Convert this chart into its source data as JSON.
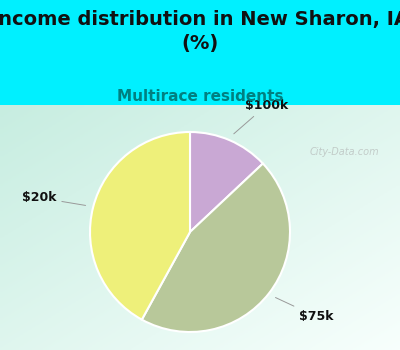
{
  "title": "Income distribution in New Sharon, IA\n(%)",
  "subtitle": "Multirace residents",
  "slices": [
    {
      "label": "$100k",
      "value": 13,
      "color": "#c9a8d4"
    },
    {
      "label": "$75k",
      "value": 45,
      "color": "#b8c89a"
    },
    {
      "label": "$20k",
      "value": 42,
      "color": "#eef07a"
    }
  ],
  "bg_color": "#00f0ff",
  "panel_gradient_colors": [
    "#c5e8e0",
    "#e8f5f0",
    "#f5fffe"
  ],
  "title_fontsize": 14,
  "title_color": "#111111",
  "subtitle_fontsize": 11,
  "subtitle_color": "#008080",
  "label_fontsize": 9,
  "label_color": "#111111",
  "watermark": "City-Data.com"
}
